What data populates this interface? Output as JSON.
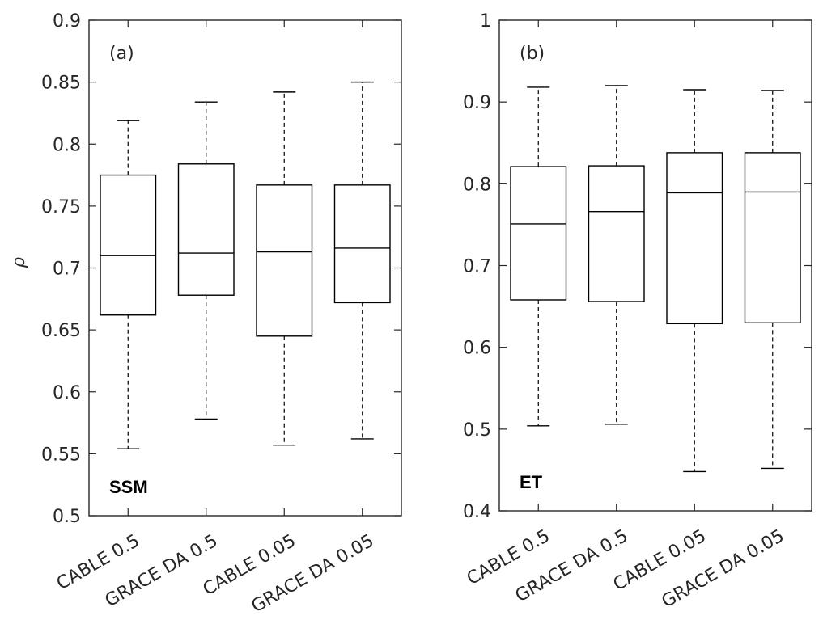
{
  "chart_data": [
    {
      "type": "box",
      "panel_label": "(a)",
      "variable_label": "SSM",
      "ylabel": "ρ",
      "ylim": [
        0.5,
        0.9
      ],
      "yticks": [
        "0.5",
        "0.55",
        "0.6",
        "0.65",
        "0.7",
        "0.75",
        "0.8",
        "0.85",
        "0.9"
      ],
      "categories": [
        "CABLE 0.5",
        "GRACE DA 0.5",
        "CABLE 0.05",
        "GRACE DA 0.05"
      ],
      "boxes": [
        {
          "whisker_low": 0.554,
          "q1": 0.662,
          "median": 0.71,
          "q3": 0.775,
          "whisker_high": 0.819
        },
        {
          "whisker_low": 0.578,
          "q1": 0.678,
          "median": 0.712,
          "q3": 0.784,
          "whisker_high": 0.834
        },
        {
          "whisker_low": 0.557,
          "q1": 0.645,
          "median": 0.713,
          "q3": 0.767,
          "whisker_high": 0.842
        },
        {
          "whisker_low": 0.562,
          "q1": 0.672,
          "median": 0.716,
          "q3": 0.767,
          "whisker_high": 0.85
        }
      ]
    },
    {
      "type": "box",
      "panel_label": "(b)",
      "variable_label": "ET",
      "ylim": [
        0.4,
        1.0
      ],
      "yticks": [
        "0.4",
        "0.5",
        "0.6",
        "0.7",
        "0.8",
        "0.9",
        "1"
      ],
      "categories": [
        "CABLE 0.5",
        "GRACE DA 0.5",
        "CABLE 0.05",
        "GRACE DA 0.05"
      ],
      "boxes": [
        {
          "whisker_low": 0.504,
          "q1": 0.658,
          "median": 0.751,
          "q3": 0.821,
          "whisker_high": 0.918
        },
        {
          "whisker_low": 0.506,
          "q1": 0.656,
          "median": 0.766,
          "q3": 0.822,
          "whisker_high": 0.92
        },
        {
          "whisker_low": 0.448,
          "q1": 0.629,
          "median": 0.789,
          "q3": 0.838,
          "whisker_high": 0.915
        },
        {
          "whisker_low": 0.452,
          "q1": 0.63,
          "median": 0.79,
          "q3": 0.838,
          "whisker_high": 0.914
        }
      ]
    }
  ]
}
